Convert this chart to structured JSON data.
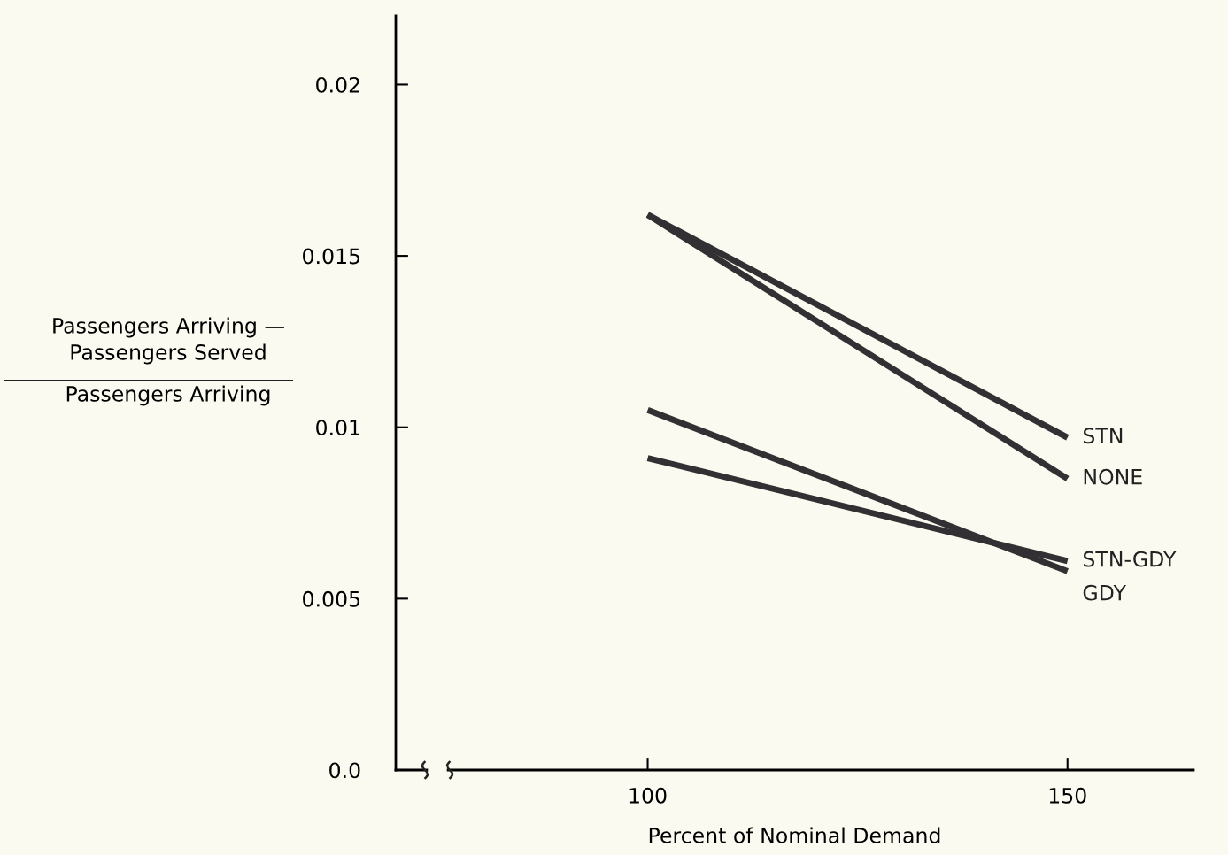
{
  "chart_data": {
    "type": "line",
    "xlabel": "Percent of Nominal Demand",
    "ylabel": "Passengers Arriving —\nPassengers Served\nPassengers Arriving",
    "x": [
      100,
      150
    ],
    "series": [
      {
        "name": "STN",
        "color": "#333033",
        "values": [
          0.0162,
          0.0097
        ]
      },
      {
        "name": "NONE",
        "color": "#333033",
        "values": [
          0.0162,
          0.0085
        ]
      },
      {
        "name": "STN-GDY",
        "color": "#333033",
        "values": [
          0.0091,
          0.0061
        ]
      },
      {
        "name": "GDY",
        "color": "#333033",
        "values": [
          0.0105,
          0.0058
        ]
      }
    ],
    "xlim": [
      70,
      165
    ],
    "xticks": [
      100,
      150
    ],
    "ylim": [
      0,
      0.022
    ],
    "yticks": [
      {
        "value": 0,
        "label": "0.0"
      },
      {
        "value": 0.005,
        "label": "0.005"
      },
      {
        "value": 0.01,
        "label": "0.01"
      },
      {
        "value": 0.015,
        "label": "0.015"
      },
      {
        "value": 0.02,
        "label": "0.02"
      }
    ],
    "grid": false,
    "legend": false,
    "marker": "none",
    "line_style": "solid"
  }
}
